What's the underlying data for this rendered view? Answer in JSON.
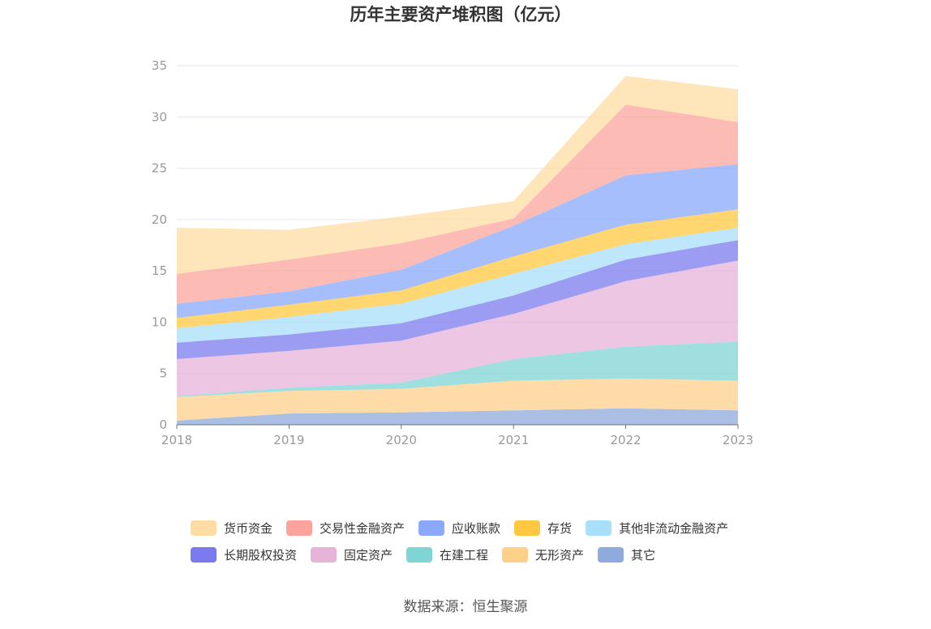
{
  "chart_data": {
    "type": "area",
    "stacked": true,
    "title": "历年主要资产堆积图（亿元）",
    "x": [
      "2018",
      "2019",
      "2020",
      "2021",
      "2022",
      "2023"
    ],
    "ylim": [
      0,
      35
    ],
    "yticks": [
      0,
      5,
      10,
      15,
      20,
      25,
      30,
      35
    ],
    "grid": true,
    "legend_position": "bottom",
    "series": [
      {
        "name": "其它",
        "color": "#8faadc",
        "values": [
          0.4,
          1.1,
          1.2,
          1.4,
          1.6,
          1.4
        ]
      },
      {
        "name": "无形资产",
        "color": "#ffd08a",
        "values": [
          2.3,
          2.2,
          2.3,
          2.9,
          2.9,
          2.9
        ]
      },
      {
        "name": "在建工程",
        "color": "#7fd4d4",
        "values": [
          0.1,
          0.3,
          0.6,
          2.1,
          3.1,
          3.8
        ]
      },
      {
        "name": "固定资产",
        "color": "#e6b3d9",
        "values": [
          3.6,
          3.6,
          4.1,
          4.4,
          6.4,
          7.9
        ]
      },
      {
        "name": "长期股权投资",
        "color": "#7b7bef",
        "values": [
          1.6,
          1.6,
          1.7,
          1.8,
          2.1,
          2.0
        ]
      },
      {
        "name": "其他非流动金融资产",
        "color": "#a8dffa",
        "values": [
          1.4,
          1.7,
          1.9,
          2.1,
          1.5,
          1.2
        ]
      },
      {
        "name": "存货",
        "color": "#ffc840",
        "values": [
          1.0,
          1.2,
          1.3,
          1.7,
          1.9,
          1.8
        ]
      },
      {
        "name": "应收账款",
        "color": "#8aa8fc",
        "values": [
          1.4,
          1.3,
          2.0,
          3.0,
          4.8,
          4.4
        ]
      },
      {
        "name": "交易性金融资产",
        "color": "#fca49c",
        "values": [
          2.9,
          3.1,
          2.6,
          0.7,
          6.9,
          4.1
        ]
      },
      {
        "name": "货币资金",
        "color": "#ffdca3",
        "values": [
          4.5,
          2.9,
          2.6,
          1.7,
          2.8,
          3.2
        ]
      }
    ]
  },
  "legend_order": [
    "货币资金",
    "交易性金融资产",
    "应收账款",
    "存货",
    "其他非流动金融资产",
    "长期股权投资",
    "固定资产",
    "在建工程",
    "无形资产",
    "其它"
  ],
  "source_text": "数据来源：恒生聚源"
}
